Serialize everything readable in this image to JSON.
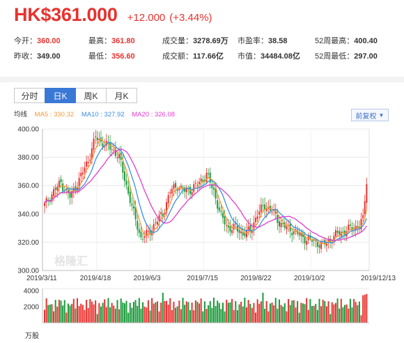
{
  "quote": {
    "price": "HK$361.000",
    "change": "+12.000",
    "change_pct": "(+3.44%)"
  },
  "stats": [
    [
      {
        "k": "今开：",
        "v": "360.00",
        "c": "red"
      },
      {
        "k": "最高：",
        "v": "361.80",
        "c": "red"
      },
      {
        "k": "成交量：",
        "v": "3278.69万",
        "c": ""
      },
      {
        "k": "市盈率：",
        "v": "38.58",
        "c": ""
      },
      {
        "k": "52周最高：",
        "v": "400.40",
        "c": ""
      }
    ],
    [
      {
        "k": "昨收：",
        "v": "349.00",
        "c": ""
      },
      {
        "k": "最低：",
        "v": "356.60",
        "c": "red"
      },
      {
        "k": "成交额：",
        "v": "117.66亿",
        "c": ""
      },
      {
        "k": "市值：",
        "v": "34484.08亿",
        "c": ""
      },
      {
        "k": "52周最低：",
        "v": "297.00",
        "c": ""
      }
    ]
  ],
  "tabs": [
    "分时",
    "日K",
    "周K",
    "月K"
  ],
  "active_tab": "日K",
  "legend": {
    "title": "均线",
    "ma5": "MA5 : 330.32",
    "ma10": "MA10 : 327.92",
    "ma20": "MA20 : 326.08"
  },
  "adjust_label": "前复权",
  "watermark": "格隆汇",
  "colors": {
    "up": "#e8322e",
    "down": "#1a9a3a",
    "ma5": "#f29a3a",
    "ma10": "#3a8ee6",
    "ma20": "#e23bd1",
    "accent": "#3a78d6"
  },
  "chart_data": {
    "type": "candlestick",
    "price_axis": {
      "ticks": [
        "400.00",
        "380.00",
        "360.00",
        "340.00",
        "320.00",
        "300.00"
      ],
      "ylim": [
        300,
        400
      ]
    },
    "date_axis": [
      "2019/3/11",
      "2019/4/18",
      "2019/6/3",
      "2019/7/15",
      "2019/8/22",
      "2019/10/2",
      "2019/12/13"
    ],
    "volume_axis": {
      "ticks": [
        "4000",
        "2000"
      ],
      "unit": "万股",
      "ylim": [
        0,
        4200
      ]
    },
    "close_anchors": [
      [
        0,
        346
      ],
      [
        5,
        356
      ],
      [
        9,
        362
      ],
      [
        14,
        352
      ],
      [
        19,
        364
      ],
      [
        24,
        378
      ],
      [
        28,
        394
      ],
      [
        32,
        390
      ],
      [
        37,
        386
      ],
      [
        41,
        380
      ],
      [
        45,
        360
      ],
      [
        49,
        340
      ],
      [
        53,
        323
      ],
      [
        57,
        326
      ],
      [
        61,
        334
      ],
      [
        65,
        340
      ],
      [
        69,
        356
      ],
      [
        73,
        360
      ],
      [
        77,
        356
      ],
      [
        81,
        358
      ],
      [
        85,
        362
      ],
      [
        89,
        368
      ],
      [
        93,
        356
      ],
      [
        97,
        338
      ],
      [
        101,
        330
      ],
      [
        105,
        330
      ],
      [
        109,
        326
      ],
      [
        113,
        328
      ],
      [
        117,
        340
      ],
      [
        121,
        346
      ],
      [
        125,
        342
      ],
      [
        129,
        334
      ],
      [
        133,
        330
      ],
      [
        137,
        328
      ],
      [
        141,
        324
      ],
      [
        145,
        322
      ],
      [
        149,
        320
      ],
      [
        153,
        318
      ],
      [
        157,
        322
      ],
      [
        161,
        326
      ],
      [
        165,
        328
      ],
      [
        169,
        330
      ],
      [
        173,
        332
      ],
      [
        175,
        336
      ],
      [
        176,
        348
      ],
      [
        177,
        361
      ]
    ]
  }
}
